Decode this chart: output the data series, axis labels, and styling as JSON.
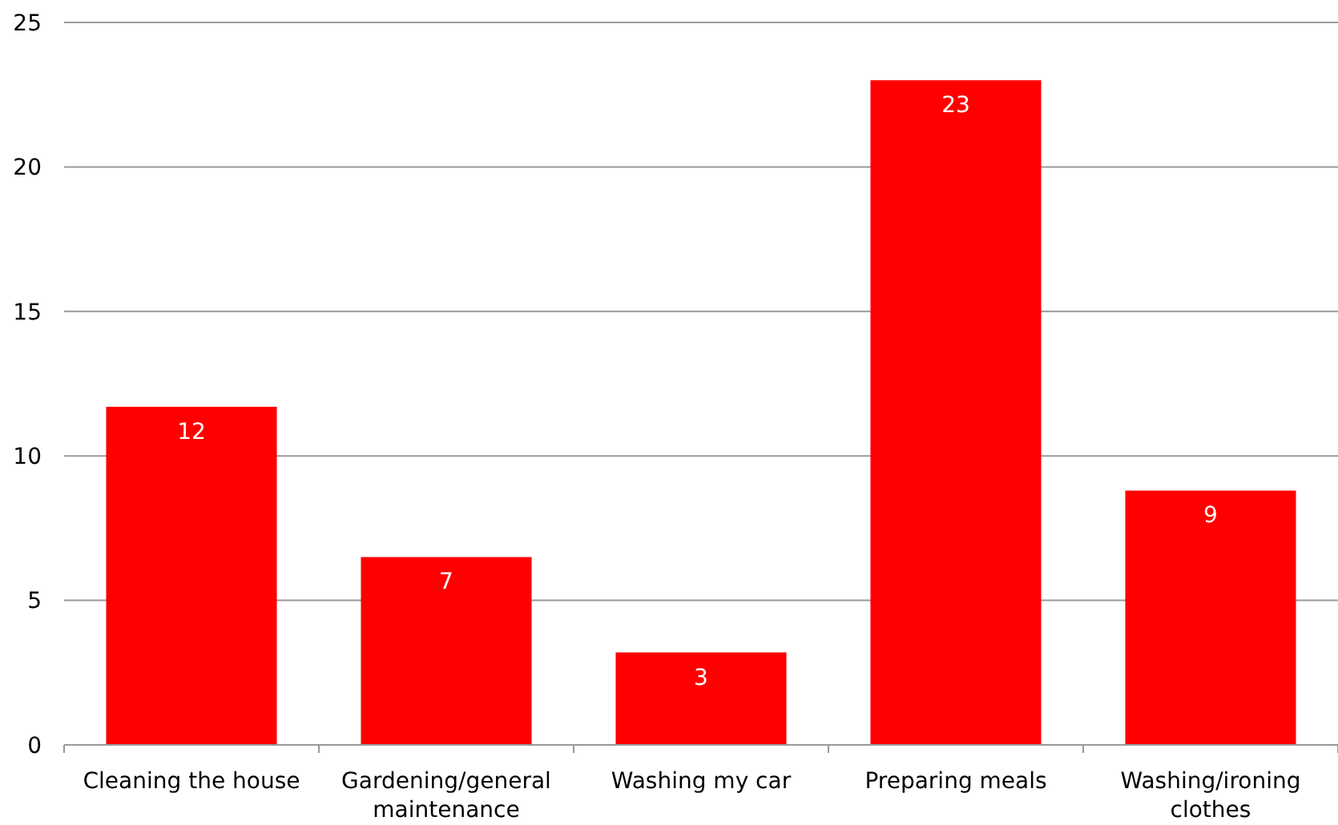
{
  "chart_data": {
    "type": "bar",
    "categories": [
      "Cleaning the house",
      "Gardening/general maintenance",
      "Washing my car",
      "Preparing meals",
      "Washing/ironing clothes"
    ],
    "values": [
      11.7,
      6.5,
      3.2,
      23.0,
      8.8
    ],
    "value_labels": [
      "12",
      "7",
      "3",
      "23",
      "9"
    ],
    "color": "#ff0000",
    "ylim": [
      0,
      25
    ],
    "yticks": [
      0,
      5,
      10,
      15,
      20,
      25
    ],
    "grid": "y"
  }
}
